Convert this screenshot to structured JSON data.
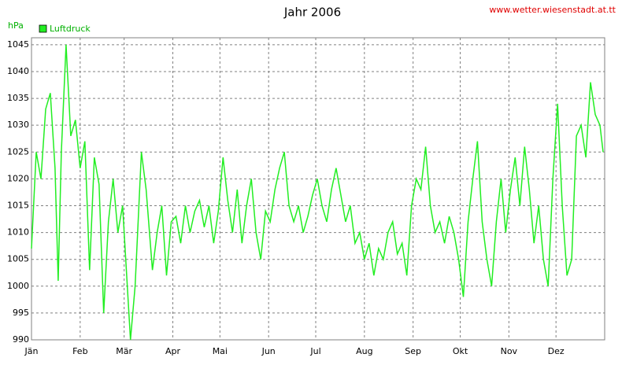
{
  "chart_data": {
    "type": "line",
    "title": "Jahr 2006",
    "source": "www.wetter.wiesenstadt.at.tt",
    "ylabel": "hPa",
    "grid": true,
    "legend": "top-left",
    "xlim": [
      0,
      365
    ],
    "xticks": [
      {
        "value": 0,
        "label": "Jän"
      },
      {
        "value": 31,
        "label": "Feb"
      },
      {
        "value": 59,
        "label": "Mär"
      },
      {
        "value": 90,
        "label": "Apr"
      },
      {
        "value": 120,
        "label": "Mai"
      },
      {
        "value": 151,
        "label": "Jun"
      },
      {
        "value": 181,
        "label": "Jul"
      },
      {
        "value": 212,
        "label": "Aug"
      },
      {
        "value": 243,
        "label": "Sep"
      },
      {
        "value": 273,
        "label": "Okt"
      },
      {
        "value": 304,
        "label": "Nov"
      },
      {
        "value": 334,
        "label": "Dez"
      }
    ],
    "ylim": [
      990,
      1046.3
    ],
    "yticks": [
      990,
      995,
      1000,
      1005,
      1010,
      1015,
      1020,
      1025,
      1030,
      1035,
      1040,
      1045
    ],
    "x": [
      0,
      3,
      6,
      9,
      12,
      15,
      17,
      19,
      22,
      25,
      28,
      31,
      34,
      37,
      40,
      43,
      46,
      49,
      52,
      55,
      58,
      61,
      63,
      66,
      70,
      73,
      77,
      80,
      83,
      86,
      89,
      92,
      95,
      98,
      101,
      104,
      107,
      110,
      113,
      116,
      119,
      122,
      125,
      128,
      131,
      134,
      137,
      140,
      143,
      146,
      149,
      152,
      155,
      158,
      161,
      164,
      167,
      170,
      173,
      176,
      179,
      182,
      185,
      188,
      191,
      194,
      197,
      200,
      203,
      206,
      209,
      212,
      215,
      218,
      221,
      224,
      227,
      230,
      233,
      236,
      239,
      242,
      245,
      248,
      251,
      254,
      257,
      260,
      263,
      266,
      269,
      272,
      275,
      278,
      281,
      284,
      287,
      290,
      293,
      296,
      299,
      302,
      305,
      308,
      311,
      314,
      317,
      320,
      323,
      326,
      329,
      332,
      335,
      338,
      341,
      344,
      347,
      350,
      353,
      356,
      359,
      362,
      364
    ],
    "series": [
      {
        "name": "Luftdruck",
        "color": "#22ee22",
        "values": [
          1007,
          1025,
          1020,
          1033,
          1036,
          1022,
          1001,
          1025,
          1045,
          1028,
          1031,
          1022,
          1027,
          1003,
          1024,
          1019,
          995,
          1012,
          1020,
          1010,
          1015,
          1000,
          990,
          1000,
          1025,
          1018,
          1003,
          1010,
          1015,
          1002,
          1012,
          1013,
          1008,
          1015,
          1010,
          1014,
          1016,
          1011,
          1015,
          1008,
          1014,
          1024,
          1016,
          1010,
          1018,
          1008,
          1015,
          1020,
          1010,
          1005,
          1014,
          1012,
          1018,
          1022,
          1025,
          1015,
          1012,
          1015,
          1010,
          1013,
          1017,
          1020,
          1015,
          1012,
          1018,
          1022,
          1017,
          1012,
          1015,
          1008,
          1010,
          1005,
          1008,
          1002,
          1007,
          1005,
          1010,
          1012,
          1006,
          1008,
          1002,
          1015,
          1020,
          1018,
          1026,
          1015,
          1010,
          1012,
          1008,
          1013,
          1010,
          1005,
          998,
          1012,
          1020,
          1027,
          1012,
          1005,
          1000,
          1012,
          1020,
          1010,
          1018,
          1024,
          1015,
          1026,
          1018,
          1008,
          1015,
          1005,
          1000,
          1020,
          1034,
          1015,
          1002,
          1005,
          1028,
          1030,
          1024,
          1038,
          1032,
          1030,
          1025
        ]
      }
    ]
  }
}
